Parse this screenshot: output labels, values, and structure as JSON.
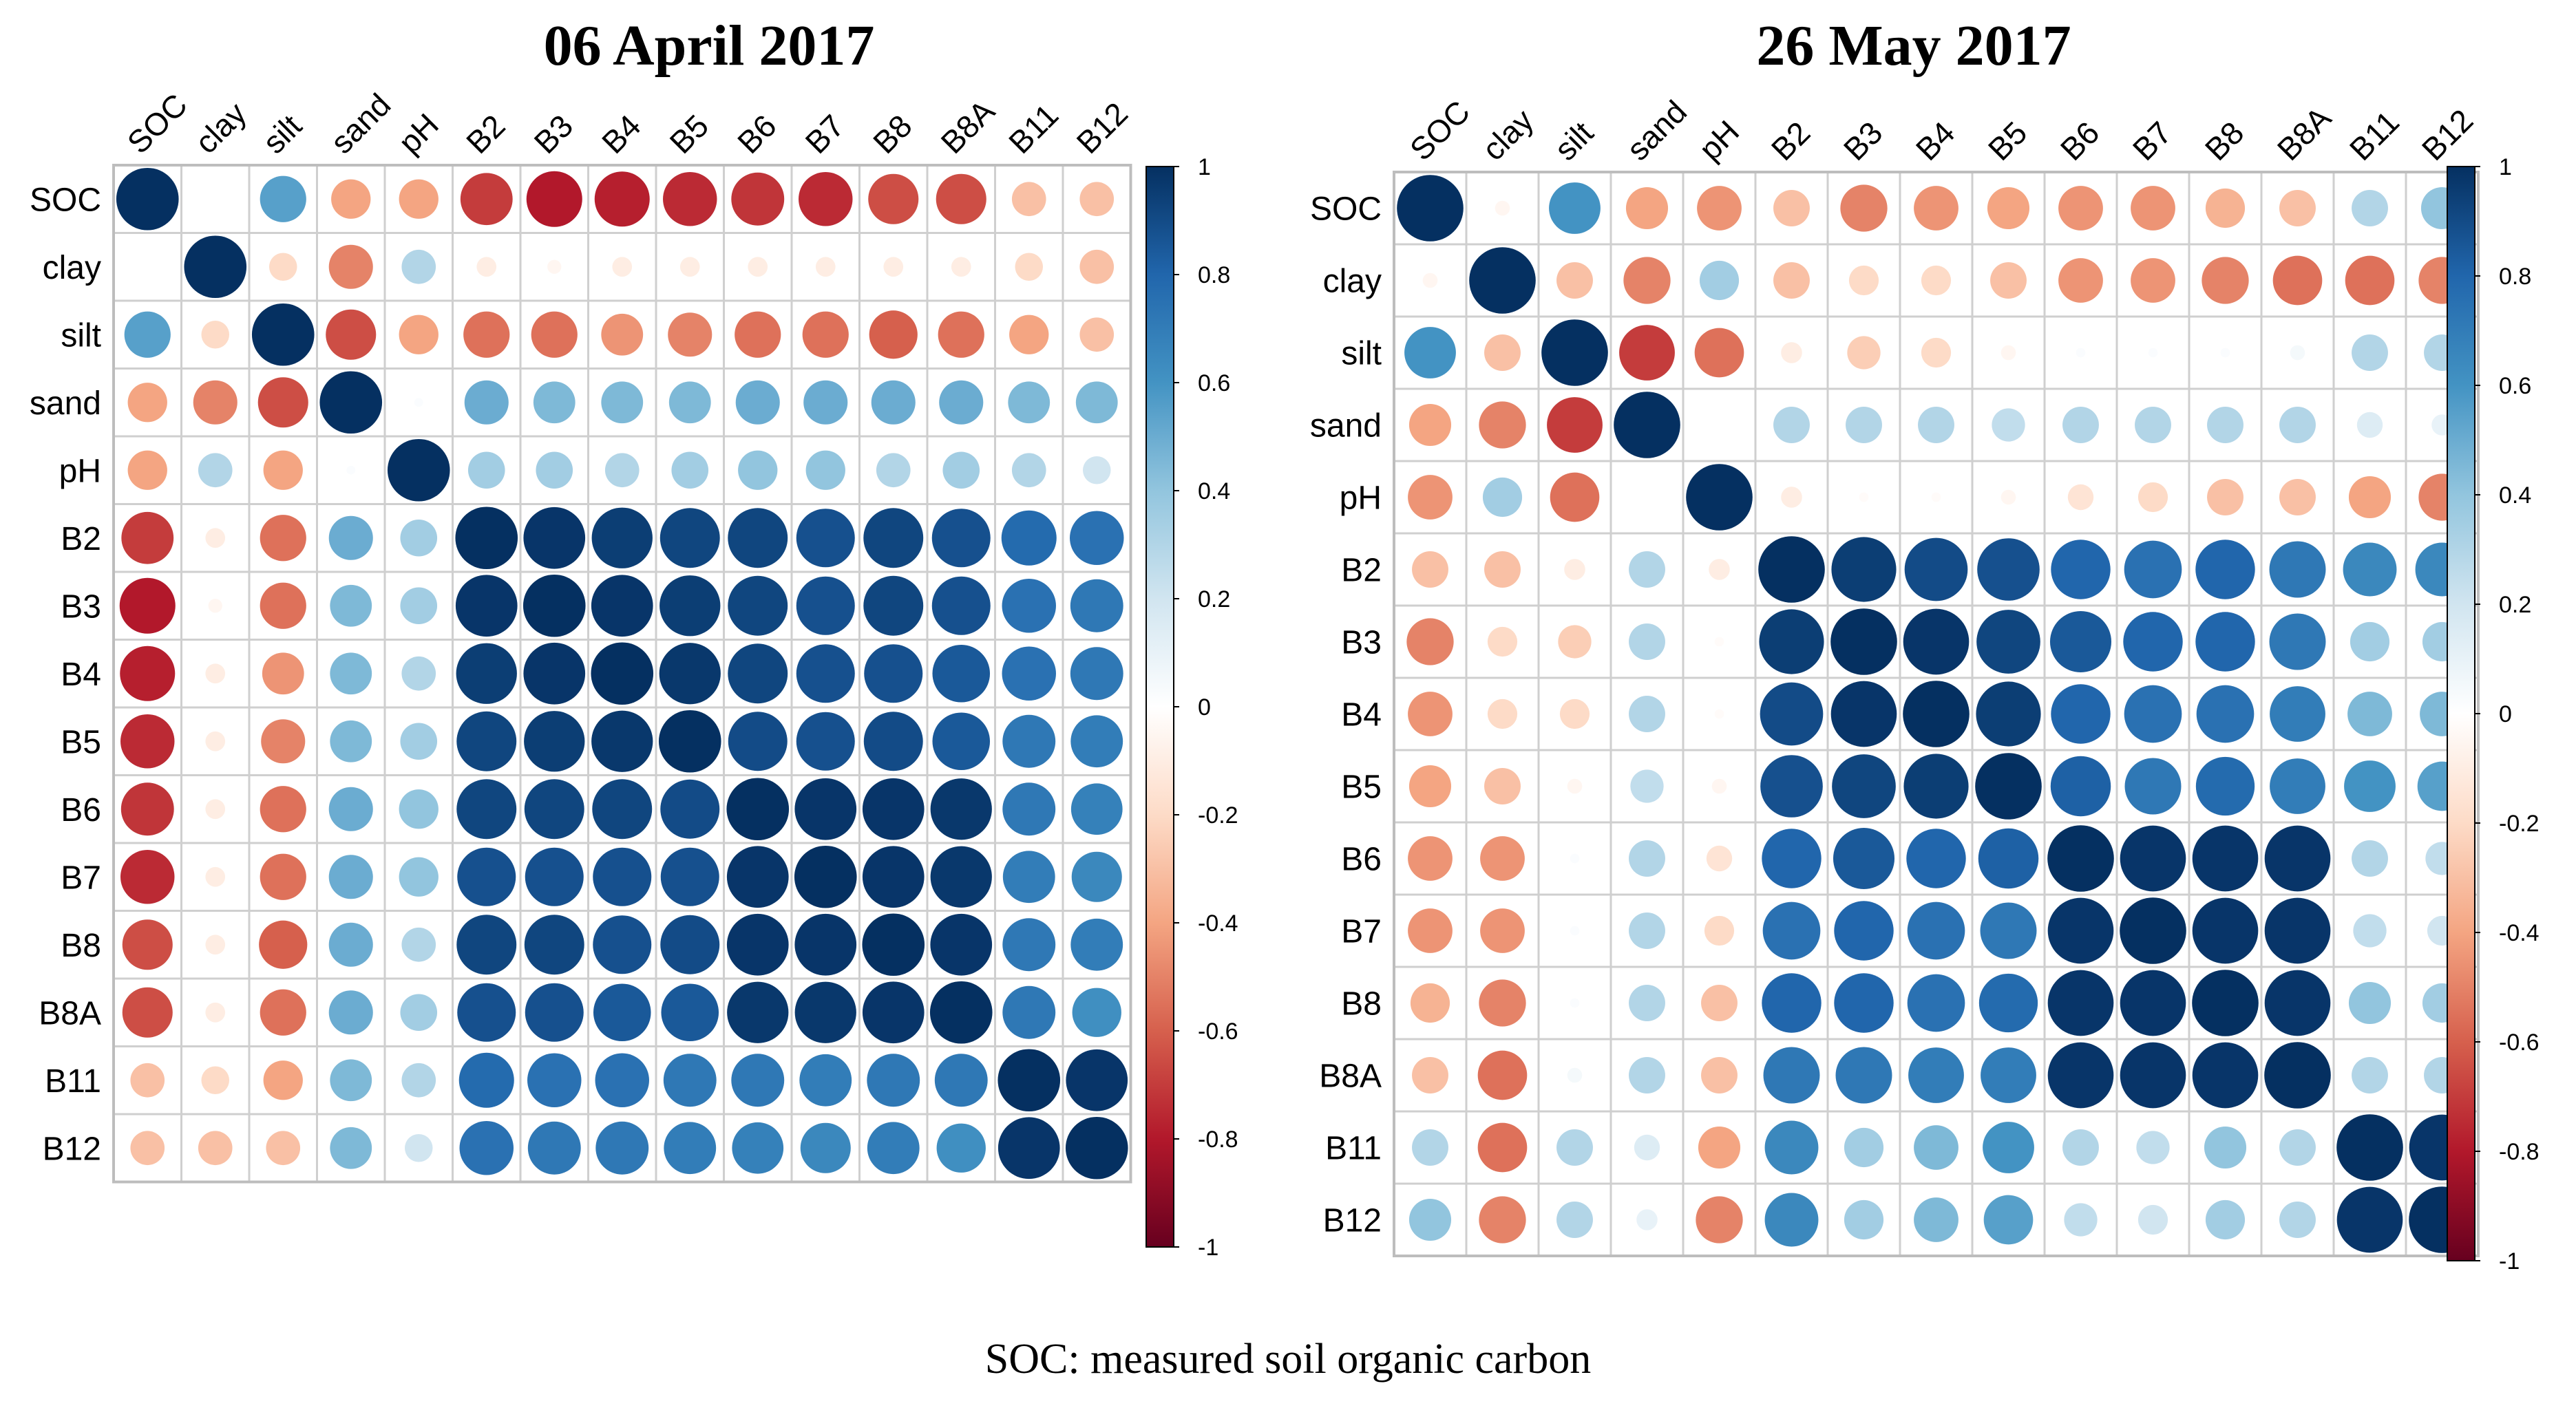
{
  "chart_data": [
    {
      "type": "heatmap",
      "title": "06 April 2017",
      "variables": [
        "SOC",
        "clay",
        "silt",
        "sand",
        "pH",
        "B2",
        "B3",
        "B4",
        "B5",
        "B6",
        "B7",
        "B8",
        "B8A",
        "B11",
        "B12"
      ],
      "colorbar_ticks": [
        "1",
        "0.8",
        "0.6",
        "0.4",
        "0.2",
        "0",
        "-0.2",
        "-0.4",
        "-0.6",
        "-0.8",
        "-1"
      ],
      "range": [
        -1,
        1
      ],
      "matrix": [
        [
          1.0,
          0.0,
          0.55,
          -0.4,
          -0.4,
          -0.7,
          -0.8,
          -0.78,
          -0.75,
          -0.72,
          -0.75,
          -0.65,
          -0.65,
          -0.3,
          -0.3
        ],
        [
          0.0,
          1.0,
          -0.2,
          -0.5,
          0.3,
          -0.1,
          -0.05,
          -0.1,
          -0.1,
          -0.1,
          -0.1,
          -0.1,
          -0.1,
          -0.2,
          -0.3
        ],
        [
          0.55,
          -0.2,
          1.0,
          -0.65,
          -0.4,
          -0.55,
          -0.55,
          -0.45,
          -0.5,
          -0.55,
          -0.55,
          -0.6,
          -0.55,
          -0.4,
          -0.3
        ],
        [
          -0.4,
          -0.5,
          -0.65,
          1.0,
          0.02,
          0.5,
          0.45,
          0.45,
          0.45,
          0.5,
          0.5,
          0.5,
          0.5,
          0.45,
          0.45
        ],
        [
          -0.4,
          0.3,
          -0.4,
          0.02,
          1.0,
          0.35,
          0.35,
          0.3,
          0.35,
          0.4,
          0.4,
          0.3,
          0.35,
          0.3,
          0.2
        ],
        [
          -0.7,
          -0.1,
          -0.55,
          0.5,
          0.35,
          1.0,
          0.98,
          0.95,
          0.92,
          0.92,
          0.88,
          0.92,
          0.88,
          0.78,
          0.75
        ],
        [
          -0.8,
          -0.05,
          -0.55,
          0.45,
          0.35,
          0.98,
          1.0,
          0.98,
          0.95,
          0.92,
          0.88,
          0.92,
          0.88,
          0.75,
          0.72
        ],
        [
          -0.78,
          -0.1,
          -0.45,
          0.45,
          0.3,
          0.95,
          0.98,
          1.0,
          0.97,
          0.92,
          0.88,
          0.88,
          0.85,
          0.75,
          0.72
        ],
        [
          -0.75,
          -0.1,
          -0.5,
          0.45,
          0.35,
          0.92,
          0.95,
          0.97,
          1.0,
          0.9,
          0.88,
          0.9,
          0.85,
          0.72,
          0.7
        ],
        [
          -0.72,
          -0.1,
          -0.55,
          0.5,
          0.4,
          0.92,
          0.92,
          0.92,
          0.9,
          1.0,
          0.98,
          0.98,
          0.97,
          0.72,
          0.68
        ],
        [
          -0.75,
          -0.1,
          -0.55,
          0.5,
          0.4,
          0.88,
          0.88,
          0.88,
          0.88,
          0.98,
          1.0,
          0.98,
          0.97,
          0.7,
          0.65
        ],
        [
          -0.65,
          -0.1,
          -0.6,
          0.5,
          0.3,
          0.92,
          0.92,
          0.88,
          0.9,
          0.98,
          0.98,
          1.0,
          0.98,
          0.72,
          0.7
        ],
        [
          -0.65,
          -0.1,
          -0.55,
          0.5,
          0.35,
          0.88,
          0.88,
          0.85,
          0.85,
          0.97,
          0.97,
          0.98,
          1.0,
          0.72,
          0.62
        ],
        [
          -0.3,
          -0.2,
          -0.4,
          0.45,
          0.3,
          0.78,
          0.75,
          0.75,
          0.72,
          0.72,
          0.7,
          0.72,
          0.72,
          1.0,
          0.98
        ],
        [
          -0.3,
          -0.3,
          -0.3,
          0.45,
          0.2,
          0.75,
          0.72,
          0.72,
          0.7,
          0.68,
          0.65,
          0.7,
          0.62,
          0.98,
          1.0
        ]
      ]
    },
    {
      "type": "heatmap",
      "title": "26 May 2017",
      "variables": [
        "SOC",
        "clay",
        "silt",
        "sand",
        "pH",
        "B2",
        "B3",
        "B4",
        "B5",
        "B6",
        "B7",
        "B8",
        "B8A",
        "B11",
        "B12"
      ],
      "colorbar_ticks": [
        "1",
        "0.8",
        "0.6",
        "0.4",
        "0.2",
        "0",
        "-0.2",
        "-0.4",
        "-0.6",
        "-0.8",
        "-1"
      ],
      "range": [
        -1,
        1
      ],
      "matrix": [
        [
          1.0,
          -0.05,
          0.6,
          -0.4,
          -0.45,
          -0.3,
          -0.5,
          -0.45,
          -0.4,
          -0.45,
          -0.45,
          -0.35,
          -0.3,
          0.3,
          0.4
        ],
        [
          -0.05,
          1.0,
          -0.3,
          -0.5,
          0.35,
          -0.3,
          -0.2,
          -0.2,
          -0.3,
          -0.45,
          -0.45,
          -0.5,
          -0.55,
          -0.55,
          -0.5
        ],
        [
          0.6,
          -0.3,
          1.0,
          -0.7,
          -0.55,
          -0.1,
          -0.25,
          -0.2,
          -0.05,
          0.02,
          0.02,
          0.02,
          0.05,
          0.3,
          0.3
        ],
        [
          -0.4,
          -0.5,
          -0.7,
          1.0,
          0.0,
          0.3,
          0.3,
          0.3,
          0.25,
          0.3,
          0.3,
          0.3,
          0.3,
          0.15,
          0.1
        ],
        [
          -0.45,
          0.35,
          -0.55,
          0.0,
          1.0,
          -0.1,
          -0.02,
          -0.02,
          -0.05,
          -0.15,
          -0.2,
          -0.3,
          -0.3,
          -0.4,
          -0.5
        ],
        [
          -0.3,
          -0.3,
          -0.1,
          0.3,
          -0.1,
          1.0,
          0.95,
          0.9,
          0.88,
          0.8,
          0.75,
          0.8,
          0.72,
          0.65,
          0.65
        ],
        [
          -0.5,
          -0.2,
          -0.25,
          0.3,
          -0.02,
          0.95,
          1.0,
          0.98,
          0.92,
          0.85,
          0.8,
          0.8,
          0.72,
          0.35,
          0.35
        ],
        [
          -0.45,
          -0.2,
          -0.2,
          0.3,
          -0.02,
          0.9,
          0.98,
          1.0,
          0.95,
          0.8,
          0.75,
          0.75,
          0.7,
          0.45,
          0.45
        ],
        [
          -0.4,
          -0.3,
          -0.05,
          0.25,
          -0.05,
          0.88,
          0.92,
          0.95,
          1.0,
          0.82,
          0.72,
          0.78,
          0.7,
          0.6,
          0.55
        ],
        [
          -0.45,
          -0.45,
          0.02,
          0.3,
          -0.15,
          0.8,
          0.85,
          0.8,
          0.82,
          1.0,
          0.98,
          0.98,
          0.98,
          0.3,
          0.25
        ],
        [
          -0.45,
          -0.45,
          0.02,
          0.3,
          -0.2,
          0.75,
          0.8,
          0.75,
          0.72,
          0.98,
          1.0,
          0.98,
          0.98,
          0.25,
          0.2
        ],
        [
          -0.35,
          -0.5,
          0.02,
          0.3,
          -0.3,
          0.8,
          0.8,
          0.75,
          0.78,
          0.98,
          0.98,
          1.0,
          0.98,
          0.4,
          0.35
        ],
        [
          -0.3,
          -0.55,
          0.05,
          0.3,
          -0.3,
          0.72,
          0.72,
          0.7,
          0.7,
          0.98,
          0.98,
          0.98,
          1.0,
          0.3,
          0.3
        ],
        [
          0.3,
          -0.55,
          0.3,
          0.15,
          -0.4,
          0.65,
          0.35,
          0.45,
          0.6,
          0.3,
          0.25,
          0.4,
          0.3,
          1.0,
          0.98
        ],
        [
          0.4,
          -0.5,
          0.3,
          0.1,
          -0.5,
          0.65,
          0.35,
          0.45,
          0.55,
          0.25,
          0.2,
          0.35,
          0.3,
          0.98,
          1.0
        ]
      ]
    }
  ],
  "caption": "SOC: measured soil organic carbon"
}
